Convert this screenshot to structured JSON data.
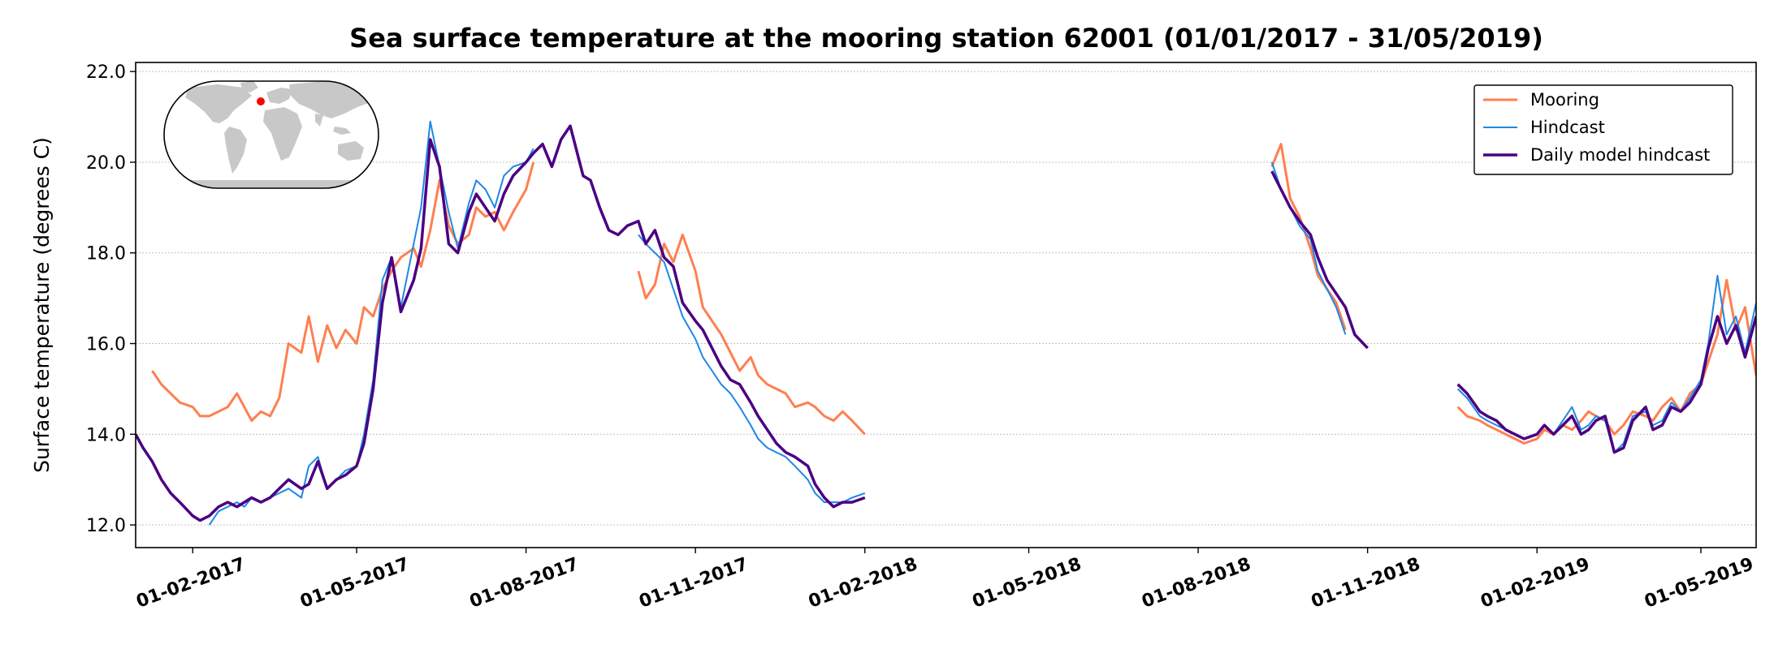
{
  "chart_data": {
    "type": "line",
    "title": "Sea surface temperature at the mooring station 62001 (01/01/2017 - 31/05/2019)",
    "xlabel": "",
    "ylabel": "Surface temperature (degrees C)",
    "xlim": [
      "2017-01-01",
      "2019-05-31"
    ],
    "ylim": [
      11.5,
      22.2
    ],
    "yticks": [
      12.0,
      14.0,
      16.0,
      18.0,
      20.0,
      22.0
    ],
    "ytick_labels": [
      "12.0",
      "14.0",
      "16.0",
      "18.0",
      "20.0",
      "22.0"
    ],
    "xticks": [
      "2017-02-01",
      "2017-05-01",
      "2017-08-01",
      "2017-11-01",
      "2018-02-01",
      "2018-05-01",
      "2018-08-01",
      "2018-11-01",
      "2019-02-01",
      "2019-05-01"
    ],
    "xtick_labels": [
      "01-02-2017",
      "01-05-2017",
      "01-08-2017",
      "01-11-2017",
      "01-02-2018",
      "01-05-2018",
      "01-08-2018",
      "01-11-2018",
      "01-02-2019",
      "01-05-2019"
    ],
    "grid": "horizontal dotted",
    "legend_position": "top-right",
    "inset": "world map with station location marker",
    "series": [
      {
        "name": "Mooring",
        "color": "#ff7f50",
        "segments": [
          {
            "x": [
              "2017-01-10",
              "2017-01-15",
              "2017-01-20",
              "2017-01-25",
              "2017-02-01",
              "2017-02-05",
              "2017-02-10",
              "2017-02-15",
              "2017-02-20",
              "2017-02-25",
              "2017-03-01",
              "2017-03-05",
              "2017-03-10",
              "2017-03-15",
              "2017-03-20",
              "2017-03-25",
              "2017-04-01",
              "2017-04-05",
              "2017-04-10",
              "2017-04-15",
              "2017-04-20",
              "2017-04-25",
              "2017-05-01",
              "2017-05-05",
              "2017-05-10",
              "2017-05-15",
              "2017-05-20",
              "2017-05-25",
              "2017-06-01",
              "2017-06-05",
              "2017-06-10",
              "2017-06-15",
              "2017-06-20",
              "2017-06-25",
              "2017-07-01",
              "2017-07-05",
              "2017-07-10",
              "2017-07-15",
              "2017-07-20",
              "2017-07-25",
              "2017-08-01",
              "2017-08-05"
            ],
            "y": [
              15.4,
              15.1,
              14.9,
              14.7,
              14.6,
              14.4,
              14.4,
              14.5,
              14.6,
              14.9,
              14.6,
              14.3,
              14.5,
              14.4,
              14.8,
              16.0,
              15.8,
              16.6,
              15.6,
              16.4,
              15.9,
              16.3,
              16.0,
              16.8,
              16.6,
              17.2,
              17.6,
              17.9,
              18.1,
              17.7,
              18.5,
              19.6,
              18.6,
              18.2,
              18.4,
              19.0,
              18.8,
              18.9,
              18.5,
              18.9,
              19.4,
              20.0
            ]
          },
          {
            "x": [
              "2017-10-01",
              "2017-10-05",
              "2017-10-10",
              "2017-10-15",
              "2017-10-20",
              "2017-10-25",
              "2017-11-01",
              "2017-11-05",
              "2017-11-10",
              "2017-11-15",
              "2017-11-20",
              "2017-11-25",
              "2017-12-01",
              "2017-12-05",
              "2017-12-10",
              "2017-12-15",
              "2017-12-20",
              "2017-12-25",
              "2018-01-01",
              "2018-01-05",
              "2018-01-10",
              "2018-01-15",
              "2018-01-20",
              "2018-01-25",
              "2018-02-01"
            ],
            "y": [
              17.6,
              17.0,
              17.3,
              18.2,
              17.8,
              18.4,
              17.6,
              16.8,
              16.5,
              16.2,
              15.8,
              15.4,
              15.7,
              15.3,
              15.1,
              15.0,
              14.9,
              14.6,
              14.7,
              14.6,
              14.4,
              14.3,
              14.5,
              14.3,
              14.0
            ]
          },
          {
            "x": [
              "2018-09-10",
              "2018-09-15",
              "2018-09-20",
              "2018-09-25",
              "2018-10-01",
              "2018-10-05",
              "2018-10-10",
              "2018-10-15",
              "2018-10-20"
            ],
            "y": [
              19.9,
              20.4,
              19.2,
              18.8,
              18.1,
              17.5,
              17.2,
              16.9,
              16.3
            ]
          },
          {
            "x": [
              "2018-12-20",
              "2018-12-25",
              "2019-01-01",
              "2019-01-05",
              "2019-01-10",
              "2019-01-15",
              "2019-01-20",
              "2019-01-25",
              "2019-02-01",
              "2019-02-05",
              "2019-02-10",
              "2019-02-15",
              "2019-02-20",
              "2019-02-25",
              "2019-03-01",
              "2019-03-05",
              "2019-03-10",
              "2019-03-15",
              "2019-03-20",
              "2019-03-25",
              "2019-04-01",
              "2019-04-05",
              "2019-04-10",
              "2019-04-15",
              "2019-04-20",
              "2019-04-25",
              "2019-05-01",
              "2019-05-05",
              "2019-05-10",
              "2019-05-15",
              "2019-05-20",
              "2019-05-25",
              "2019-05-31"
            ],
            "y": [
              14.6,
              14.4,
              14.3,
              14.2,
              14.1,
              14.0,
              13.9,
              13.8,
              13.9,
              14.1,
              14.0,
              14.2,
              14.1,
              14.3,
              14.5,
              14.4,
              14.3,
              14.0,
              14.2,
              14.5,
              14.4,
              14.3,
              14.6,
              14.8,
              14.5,
              14.9,
              15.1,
              15.6,
              16.2,
              17.4,
              16.3,
              16.8,
              15.3
            ]
          }
        ]
      },
      {
        "name": "Hindcast",
        "color": "#1e88e5",
        "segments": [
          {
            "x": [
              "2017-02-10",
              "2017-02-15",
              "2017-02-20",
              "2017-02-25",
              "2017-03-01",
              "2017-03-05",
              "2017-03-10",
              "2017-03-15",
              "2017-03-20",
              "2017-03-25",
              "2017-04-01",
              "2017-04-05",
              "2017-04-10",
              "2017-04-15",
              "2017-04-20",
              "2017-04-25",
              "2017-05-01",
              "2017-05-05",
              "2017-05-10",
              "2017-05-15",
              "2017-05-20",
              "2017-05-25",
              "2017-06-01",
              "2017-06-05",
              "2017-06-10",
              "2017-06-15",
              "2017-06-20",
              "2017-06-25",
              "2017-07-01",
              "2017-07-05",
              "2017-07-10",
              "2017-07-15",
              "2017-07-20",
              "2017-07-25",
              "2017-08-01",
              "2017-08-05"
            ],
            "y": [
              12.0,
              12.3,
              12.4,
              12.5,
              12.4,
              12.6,
              12.5,
              12.6,
              12.7,
              12.8,
              12.6,
              13.3,
              13.5,
              12.8,
              13.0,
              13.2,
              13.3,
              14.0,
              15.2,
              17.4,
              17.9,
              16.8,
              18.2,
              19.0,
              20.9,
              19.9,
              18.9,
              18.1,
              19.1,
              19.6,
              19.4,
              19.0,
              19.7,
              19.9,
              20.0,
              20.3
            ]
          },
          {
            "x": [
              "2017-10-01",
              "2017-10-05",
              "2017-10-10",
              "2017-10-15",
              "2017-10-20",
              "2017-10-25",
              "2017-11-01",
              "2017-11-05",
              "2017-11-10",
              "2017-11-15",
              "2017-11-20",
              "2017-11-25",
              "2017-12-01",
              "2017-12-05",
              "2017-12-10",
              "2017-12-15",
              "2017-12-20",
              "2017-12-25",
              "2018-01-01",
              "2018-01-05",
              "2018-01-10",
              "2018-01-15",
              "2018-01-20",
              "2018-01-25",
              "2018-02-01"
            ],
            "y": [
              18.4,
              18.2,
              18.0,
              17.8,
              17.2,
              16.6,
              16.1,
              15.7,
              15.4,
              15.1,
              14.9,
              14.6,
              14.2,
              13.9,
              13.7,
              13.6,
              13.5,
              13.3,
              13.0,
              12.7,
              12.5,
              12.5,
              12.5,
              12.6,
              12.7
            ]
          },
          {
            "x": [
              "2018-09-10",
              "2018-09-15",
              "2018-09-20",
              "2018-09-25",
              "2018-10-01",
              "2018-10-05",
              "2018-10-10",
              "2018-10-15",
              "2018-10-20"
            ],
            "y": [
              20.0,
              19.4,
              19.0,
              18.6,
              18.3,
              17.6,
              17.2,
              16.8,
              16.2
            ]
          },
          {
            "x": [
              "2018-12-20",
              "2018-12-25",
              "2019-01-01",
              "2019-01-05",
              "2019-01-10",
              "2019-01-15",
              "2019-01-20",
              "2019-01-25",
              "2019-02-01",
              "2019-02-05",
              "2019-02-10",
              "2019-02-15",
              "2019-02-20",
              "2019-02-25",
              "2019-03-01",
              "2019-03-05",
              "2019-03-10",
              "2019-03-15",
              "2019-03-20",
              "2019-03-25",
              "2019-04-01",
              "2019-04-05",
              "2019-04-10",
              "2019-04-15",
              "2019-04-20",
              "2019-04-25",
              "2019-05-01",
              "2019-05-05",
              "2019-05-10",
              "2019-05-15",
              "2019-05-20",
              "2019-05-25",
              "2019-05-31"
            ],
            "y": [
              15.0,
              14.8,
              14.4,
              14.3,
              14.2,
              14.1,
              14.0,
              13.9,
              14.0,
              14.2,
              14.0,
              14.3,
              14.6,
              14.1,
              14.2,
              14.4,
              14.3,
              13.6,
              13.8,
              14.4,
              14.5,
              14.2,
              14.3,
              14.7,
              14.5,
              14.8,
              15.2,
              16.0,
              17.5,
              16.2,
              16.6,
              15.8,
              16.9
            ]
          }
        ]
      },
      {
        "name": "Daily model hindcast",
        "color": "#4b0082",
        "segments": [
          {
            "x": [
              "2017-01-01",
              "2017-01-05",
              "2017-01-10",
              "2017-01-15",
              "2017-01-20",
              "2017-01-25",
              "2017-02-01",
              "2017-02-05",
              "2017-02-10",
              "2017-02-15",
              "2017-02-20",
              "2017-02-25",
              "2017-03-01",
              "2017-03-05",
              "2017-03-10",
              "2017-03-15",
              "2017-03-20",
              "2017-03-25",
              "2017-04-01",
              "2017-04-05",
              "2017-04-10",
              "2017-04-15",
              "2017-04-20",
              "2017-04-25",
              "2017-05-01",
              "2017-05-05",
              "2017-05-10",
              "2017-05-15",
              "2017-05-20",
              "2017-05-25",
              "2017-06-01",
              "2017-06-05",
              "2017-06-10",
              "2017-06-15",
              "2017-06-20",
              "2017-06-25",
              "2017-07-01",
              "2017-07-05",
              "2017-07-10",
              "2017-07-15",
              "2017-07-20",
              "2017-07-25",
              "2017-08-01",
              "2017-08-05",
              "2017-08-10",
              "2017-08-15",
              "2017-08-20",
              "2017-08-25",
              "2017-09-01",
              "2017-09-05",
              "2017-09-10",
              "2017-09-15",
              "2017-09-20",
              "2017-09-25",
              "2017-10-01",
              "2017-10-05",
              "2017-10-10",
              "2017-10-15",
              "2017-10-20",
              "2017-10-25",
              "2017-11-01",
              "2017-11-05",
              "2017-11-10",
              "2017-11-15",
              "2017-11-20",
              "2017-11-25",
              "2017-12-01",
              "2017-12-05",
              "2017-12-10",
              "2017-12-15",
              "2017-12-20",
              "2017-12-25",
              "2018-01-01",
              "2018-01-05",
              "2018-01-10",
              "2018-01-15",
              "2018-01-20",
              "2018-01-25",
              "2018-02-01"
            ],
            "y": [
              14.0,
              13.7,
              13.4,
              13.0,
              12.7,
              12.5,
              12.2,
              12.1,
              12.2,
              12.4,
              12.5,
              12.4,
              12.5,
              12.6,
              12.5,
              12.6,
              12.8,
              13.0,
              12.8,
              12.9,
              13.4,
              12.8,
              13.0,
              13.1,
              13.3,
              13.8,
              15.0,
              16.9,
              17.9,
              16.7,
              17.4,
              18.1,
              20.5,
              19.9,
              18.2,
              18.0,
              18.9,
              19.3,
              19.0,
              18.7,
              19.3,
              19.7,
              20.0,
              20.2,
              20.4,
              19.9,
              20.5,
              20.8,
              19.7,
              19.6,
              19.0,
              18.5,
              18.4,
              18.6,
              18.7,
              18.2,
              18.5,
              17.9,
              17.7,
              16.9,
              16.5,
              16.3,
              15.9,
              15.5,
              15.2,
              15.1,
              14.7,
              14.4,
              14.1,
              13.8,
              13.6,
              13.5,
              13.3,
              12.9,
              12.6,
              12.4,
              12.5,
              12.5,
              12.6
            ]
          },
          {
            "x": [
              "2018-09-10",
              "2018-09-15",
              "2018-09-20",
              "2018-09-25",
              "2018-10-01",
              "2018-10-05",
              "2018-10-10",
              "2018-10-15",
              "2018-10-20",
              "2018-10-25",
              "2018-11-01"
            ],
            "y": [
              19.8,
              19.4,
              19.0,
              18.7,
              18.4,
              17.9,
              17.4,
              17.1,
              16.8,
              16.2,
              15.9
            ]
          },
          {
            "x": [
              "2018-12-20",
              "2018-12-25",
              "2019-01-01",
              "2019-01-05",
              "2019-01-10",
              "2019-01-15",
              "2019-01-20",
              "2019-01-25",
              "2019-02-01",
              "2019-02-05",
              "2019-02-10",
              "2019-02-15",
              "2019-02-20",
              "2019-02-25",
              "2019-03-01",
              "2019-03-05",
              "2019-03-10",
              "2019-03-15",
              "2019-03-20",
              "2019-03-25",
              "2019-04-01",
              "2019-04-05",
              "2019-04-10",
              "2019-04-15",
              "2019-04-20",
              "2019-04-25",
              "2019-05-01",
              "2019-05-05",
              "2019-05-10",
              "2019-05-15",
              "2019-05-20",
              "2019-05-25",
              "2019-05-31"
            ],
            "y": [
              15.1,
              14.9,
              14.5,
              14.4,
              14.3,
              14.1,
              14.0,
              13.9,
              14.0,
              14.2,
              14.0,
              14.2,
              14.4,
              14.0,
              14.1,
              14.3,
              14.4,
              13.6,
              13.7,
              14.3,
              14.6,
              14.1,
              14.2,
              14.6,
              14.5,
              14.7,
              15.1,
              15.9,
              16.6,
              16.0,
              16.4,
              15.7,
              16.6
            ]
          }
        ]
      }
    ]
  },
  "inset": {
    "ocean_color": "#ffffff",
    "land_color": "#c8c8c8",
    "marker_color": "#ff0000"
  }
}
